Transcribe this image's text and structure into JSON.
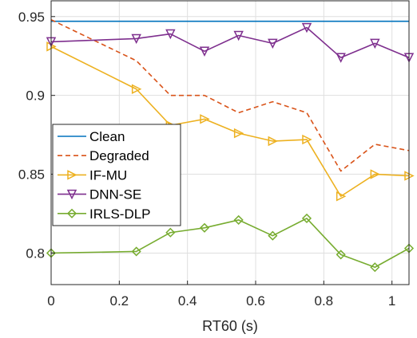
{
  "chart_data": {
    "type": "line",
    "title": "",
    "xlabel": "RT60 (s)",
    "ylabel": "",
    "xlim": [
      0,
      1.05
    ],
    "ylim": [
      0.78,
      0.96
    ],
    "xticks": [
      0,
      0.2,
      0.4,
      0.6,
      0.8,
      1
    ],
    "xtick_labels": [
      "0",
      "0.2",
      "0.4",
      "0.6",
      "0.8",
      "1"
    ],
    "yticks": [
      0.8,
      0.85,
      0.9,
      0.95
    ],
    "ytick_labels": [
      "0.8",
      "0.85",
      "0.9",
      "0.95"
    ],
    "grid": true,
    "legend_position": "middle-left",
    "x": [
      0,
      0.25,
      0.35,
      0.45,
      0.55,
      0.65,
      0.75,
      0.85,
      0.95,
      1.05
    ],
    "series": [
      {
        "name": "Clean",
        "color": "#0072BD",
        "style": "solid",
        "marker": "none",
        "values": [
          0.947,
          0.947,
          0.947,
          0.947,
          0.947,
          0.947,
          0.947,
          0.947,
          0.947,
          0.947
        ]
      },
      {
        "name": "Degraded",
        "color": "#D95319",
        "style": "dashed",
        "marker": "none",
        "values": [
          0.948,
          0.922,
          0.9,
          0.9,
          0.889,
          0.896,
          0.889,
          0.852,
          0.869,
          0.865
        ]
      },
      {
        "name": "IF-MU",
        "color": "#EDB120",
        "style": "solid",
        "marker": "triangle-right",
        "values": [
          0.931,
          0.904,
          0.881,
          0.885,
          0.876,
          0.871,
          0.872,
          0.836,
          0.85,
          0.849
        ]
      },
      {
        "name": "DNN-SE",
        "color": "#7E2F8E",
        "style": "solid",
        "marker": "triangle-down",
        "values": [
          0.934,
          0.936,
          0.939,
          0.928,
          0.938,
          0.933,
          0.943,
          0.924,
          0.933,
          0.924
        ]
      },
      {
        "name": "IRLS-DLP",
        "color": "#77AC30",
        "style": "solid",
        "marker": "diamond",
        "values": [
          0.8,
          0.801,
          0.813,
          0.816,
          0.821,
          0.811,
          0.822,
          0.799,
          0.791,
          0.803
        ]
      }
    ]
  }
}
